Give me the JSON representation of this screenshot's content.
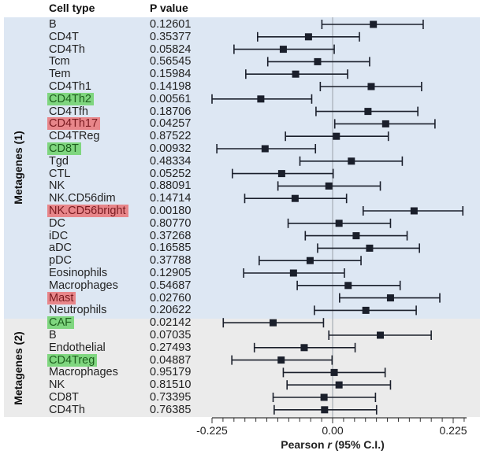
{
  "headers": {
    "cell_type": "Cell type",
    "p_value": "P value"
  },
  "colors": {
    "group1_bg": "#dde7f3",
    "group2_bg": "#ebebeb",
    "green_highlight": "#7fd67f",
    "red_highlight": "#e8868a",
    "marker": "#1a1f2b"
  },
  "chart_data": {
    "type": "forest",
    "xlabel_prefix": "Pearson ",
    "xlabel_italic": "r",
    "xlabel_suffix": " (95% C.I.)",
    "xlim": [
      -0.225,
      0.25
    ],
    "xticks": [
      -0.225,
      0.0,
      0.225
    ],
    "xtick_labels": [
      "-0.225",
      "0.00",
      "0.225"
    ],
    "reference_line": 0,
    "groups": [
      {
        "name": "Metagenes (1)",
        "rows": [
          {
            "label": "B",
            "p": "0.12601",
            "r": 0.076,
            "lo": -0.02,
            "hi": 0.169,
            "highlight": ""
          },
          {
            "label": "CD4T",
            "p": "0.35377",
            "r": -0.045,
            "lo": -0.14,
            "hi": 0.05,
            "highlight": ""
          },
          {
            "label": "CD4Th",
            "p": "0.05824",
            "r": -0.092,
            "lo": -0.184,
            "hi": 0.003,
            "highlight": ""
          },
          {
            "label": "Tcm",
            "p": "0.56545",
            "r": -0.028,
            "lo": -0.121,
            "hi": 0.069,
            "highlight": ""
          },
          {
            "label": "Tem",
            "p": "0.15984",
            "r": -0.069,
            "lo": -0.162,
            "hi": 0.028,
            "highlight": ""
          },
          {
            "label": "CD4Th1",
            "p": "0.14198",
            "r": 0.072,
            "lo": -0.023,
            "hi": 0.166,
            "highlight": ""
          },
          {
            "label": "CD4Th2",
            "p": "0.00561",
            "r": -0.134,
            "lo": -0.225,
            "hi": -0.039,
            "highlight": "green"
          },
          {
            "label": "CD4Tfh",
            "p": "0.18706",
            "r": 0.066,
            "lo": -0.031,
            "hi": 0.159,
            "highlight": ""
          },
          {
            "label": "CD4Th17",
            "p": "0.04257",
            "r": 0.099,
            "lo": 0.004,
            "hi": 0.191,
            "highlight": "red"
          },
          {
            "label": "CD4TReg",
            "p": "0.87522",
            "r": 0.007,
            "lo": -0.088,
            "hi": 0.104,
            "highlight": ""
          },
          {
            "label": "CD8T",
            "p": "0.00932",
            "r": -0.126,
            "lo": -0.216,
            "hi": -0.032,
            "highlight": "green"
          },
          {
            "label": "Tgd",
            "p": "0.48334",
            "r": 0.035,
            "lo": -0.061,
            "hi": 0.13,
            "highlight": ""
          },
          {
            "label": "CTL",
            "p": "0.05252",
            "r": -0.095,
            "lo": -0.187,
            "hi": 0.001,
            "highlight": ""
          },
          {
            "label": "NK",
            "p": "0.88091",
            "r": -0.007,
            "lo": -0.102,
            "hi": 0.089,
            "highlight": ""
          },
          {
            "label": "NK.CD56dim",
            "p": "0.14714",
            "r": -0.07,
            "lo": -0.164,
            "hi": 0.026,
            "highlight": ""
          },
          {
            "label": "NK.CD56bright",
            "p": "0.00180",
            "r": 0.152,
            "lo": 0.057,
            "hi": 0.243,
            "highlight": "red"
          },
          {
            "label": "DC",
            "p": "0.80770",
            "r": 0.012,
            "lo": -0.083,
            "hi": 0.108,
            "highlight": ""
          },
          {
            "label": "iDC",
            "p": "0.37268",
            "r": 0.044,
            "lo": -0.051,
            "hi": 0.139,
            "highlight": ""
          },
          {
            "label": "aDC",
            "p": "0.16585",
            "r": 0.069,
            "lo": -0.028,
            "hi": 0.162,
            "highlight": ""
          },
          {
            "label": "pDC",
            "p": "0.37788",
            "r": -0.042,
            "lo": -0.137,
            "hi": 0.053,
            "highlight": ""
          },
          {
            "label": "Eosinophils",
            "p": "0.12905",
            "r": -0.073,
            "lo": -0.166,
            "hi": 0.022,
            "highlight": ""
          },
          {
            "label": "Macrophages",
            "p": "0.54687",
            "r": 0.029,
            "lo": -0.066,
            "hi": 0.126,
            "highlight": ""
          },
          {
            "label": "Mast",
            "p": "0.02760",
            "r": 0.108,
            "lo": 0.013,
            "hi": 0.2,
            "highlight": "red"
          },
          {
            "label": "Neutrophils",
            "p": "0.20622",
            "r": 0.062,
            "lo": -0.034,
            "hi": 0.156,
            "highlight": ""
          }
        ]
      },
      {
        "name": "Metagenes (2)",
        "rows": [
          {
            "label": "CAF",
            "p": "0.02142",
            "r": -0.111,
            "lo": -0.204,
            "hi": -0.017,
            "highlight": "green"
          },
          {
            "label": "B",
            "p": "0.07035",
            "r": 0.089,
            "lo": -0.007,
            "hi": 0.184,
            "highlight": ""
          },
          {
            "label": "Endothelial",
            "p": "0.27493",
            "r": -0.053,
            "lo": -0.146,
            "hi": 0.042,
            "highlight": ""
          },
          {
            "label": "CD4Treg",
            "p": "0.04887",
            "r": -0.096,
            "lo": -0.188,
            "hi": -0.001,
            "highlight": "green"
          },
          {
            "label": "Macrophages",
            "p": "0.95179",
            "r": 0.003,
            "lo": -0.092,
            "hi": 0.098,
            "highlight": ""
          },
          {
            "label": "NK",
            "p": "0.81510",
            "r": 0.012,
            "lo": -0.085,
            "hi": 0.108,
            "highlight": ""
          },
          {
            "label": "CD8T",
            "p": "0.73395",
            "r": -0.016,
            "lo": -0.111,
            "hi": 0.08,
            "highlight": ""
          },
          {
            "label": "CD4Th",
            "p": "0.76385",
            "r": -0.015,
            "lo": -0.109,
            "hi": 0.082,
            "highlight": ""
          }
        ]
      }
    ]
  }
}
